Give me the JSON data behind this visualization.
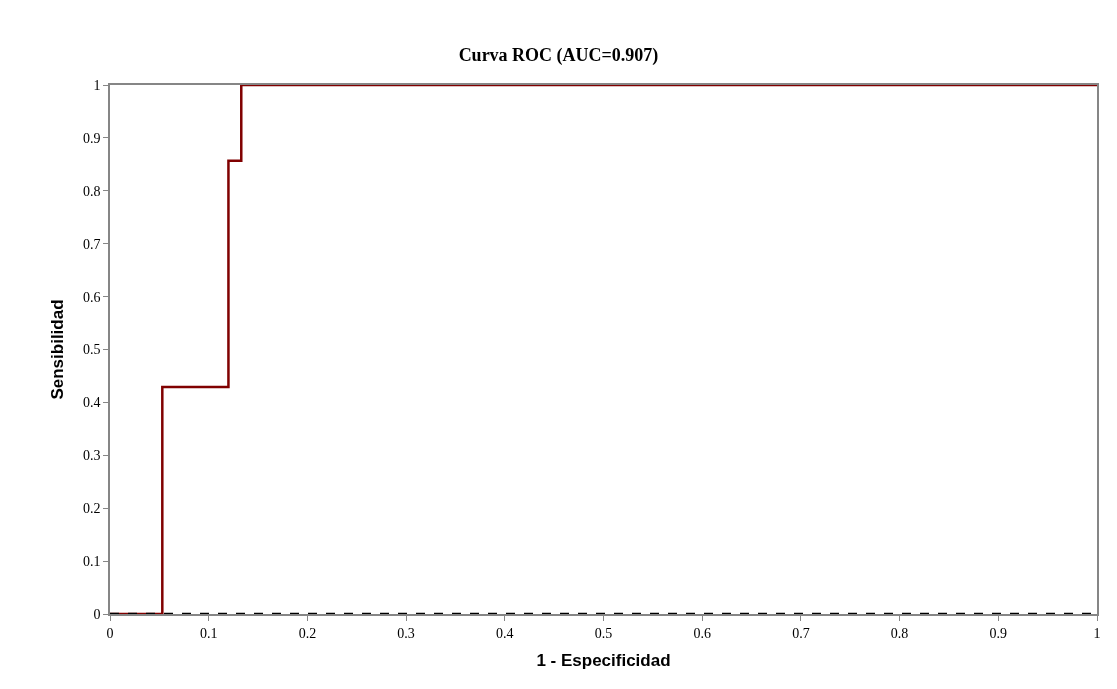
{
  "chart_data": {
    "type": "step",
    "title": "Curva ROC (AUC=0.907)",
    "xlabel": "1 - Especificidad",
    "ylabel": "Sensibilidad",
    "series": [
      {
        "color": "#800000",
        "x": [
          0,
          0.053,
          0.12,
          0.133,
          1
        ],
        "values": [
          0,
          0.429,
          0.857,
          1,
          1
        ],
        "line_style": "solid"
      },
      {
        "type": "line",
        "color": "#000000",
        "x": [
          0,
          1
        ],
        "values": [
          0,
          0
        ],
        "line_style": "dashed"
      }
    ],
    "xlim": [
      0,
      1
    ],
    "xticks": [
      0,
      0.1,
      0.2,
      0.3,
      0.4,
      0.5,
      0.6,
      0.7,
      0.8,
      0.9,
      1
    ],
    "ylim": [
      0,
      1
    ],
    "yticks": [
      0,
      0.1,
      0.2,
      0.3,
      0.4,
      0.5,
      0.6,
      0.7,
      0.8,
      0.9,
      1
    ],
    "legend": false,
    "marker": "none"
  }
}
